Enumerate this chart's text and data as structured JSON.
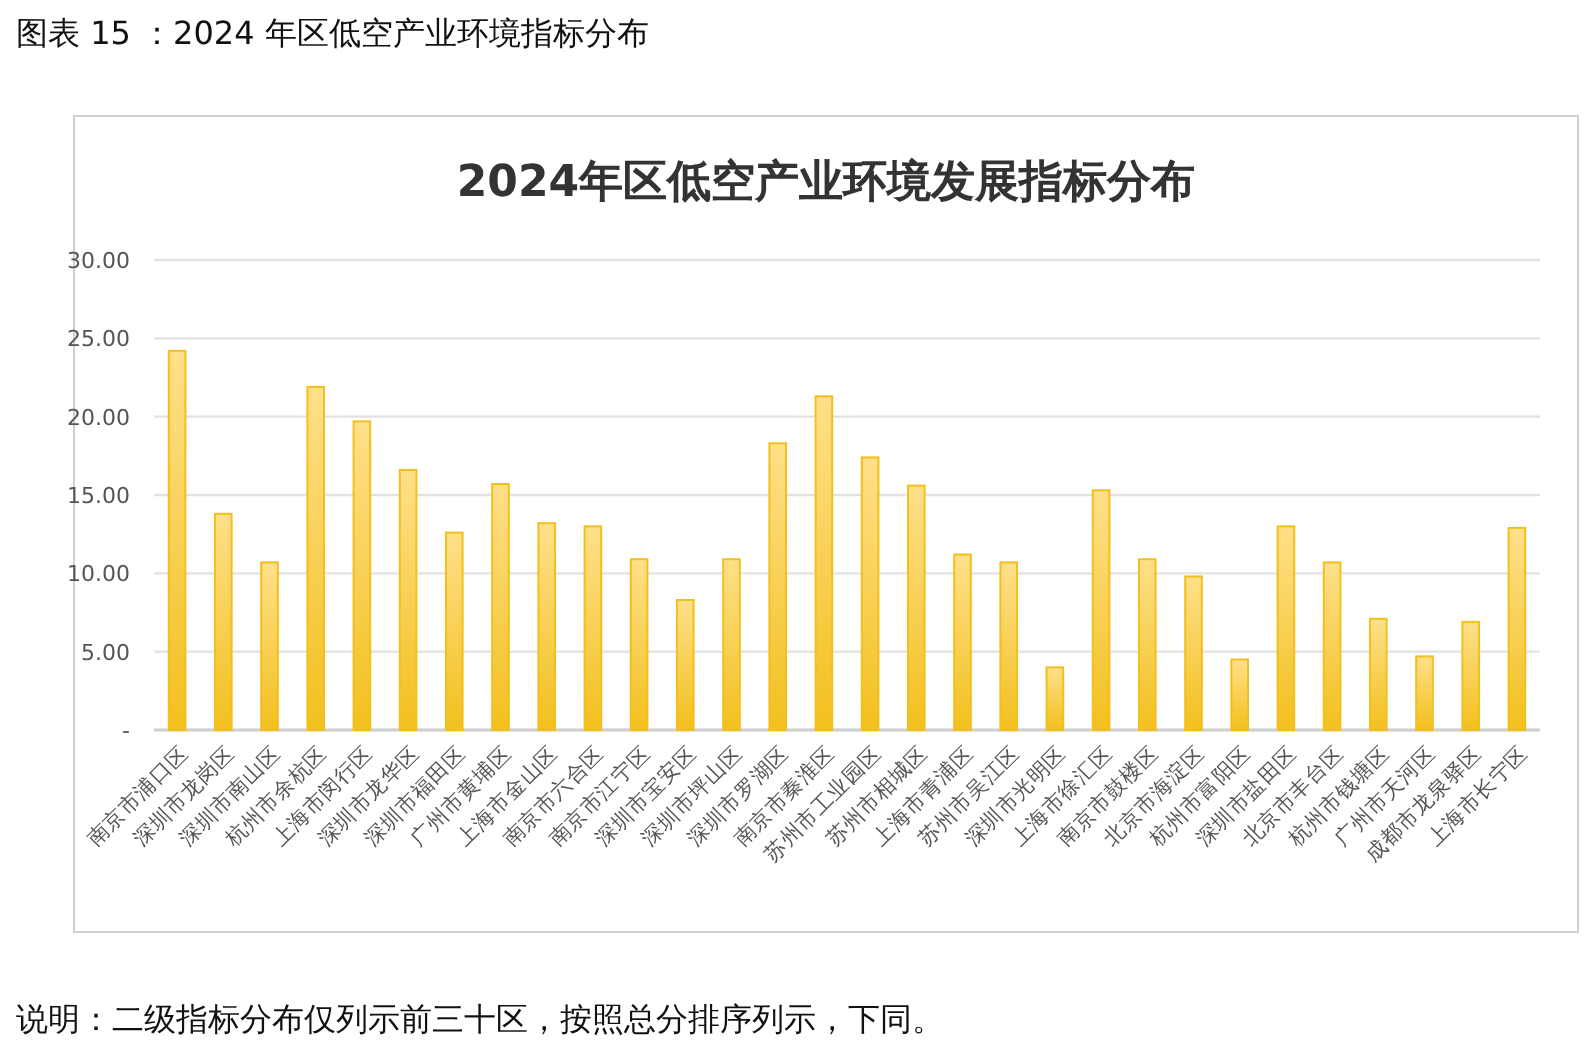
{
  "chart_data": {
    "type": "bar",
    "title": "2024年区低空产业环境发展指标分布",
    "annotations": [
      "图表 15 ：2024 年区低空产业环境指标分布",
      "说明：二级指标分布仅列示前三十区，按照总分排序列示，下同。"
    ],
    "categories": [
      "南京市浦口区",
      "深圳市龙岗区",
      "深圳市南山区",
      "杭州市余杭区",
      "上海市闵行区",
      "深圳市龙华区",
      "深圳市福田区",
      "广州市黄埔区",
      "上海市金山区",
      "南京市六合区",
      "南京市江宁区",
      "深圳市宝安区",
      "深圳市坪山区",
      "深圳市罗湖区",
      "南京市秦淮区",
      "苏州市工业园区",
      "苏州市相城区",
      "上海市青浦区",
      "苏州市吴江区",
      "深圳市光明区",
      "上海市徐汇区",
      "南京市鼓楼区",
      "北京市海淀区",
      "杭州市富阳区",
      "深圳市盐田区",
      "北京市丰台区",
      "杭州市钱塘区",
      "广州市天河区",
      "成都市龙泉驿区",
      "上海市长宁区"
    ],
    "values": [
      24.2,
      13.8,
      10.7,
      21.9,
      19.7,
      16.6,
      12.6,
      15.7,
      13.2,
      13.0,
      10.9,
      8.3,
      10.9,
      18.3,
      21.3,
      17.4,
      15.6,
      11.2,
      10.7,
      4.0,
      15.3,
      10.9,
      9.8,
      4.5,
      13.0,
      10.7,
      7.1,
      4.7,
      6.9,
      12.9
    ],
    "color": "#f2c01e",
    "ylim": [
      0,
      30
    ],
    "yticks": [
      {
        "value": 0,
        "label": "-"
      },
      {
        "value": 5,
        "label": "5.00"
      },
      {
        "value": 10,
        "label": "10.00"
      },
      {
        "value": 15,
        "label": "15.00"
      },
      {
        "value": 20,
        "label": "20.00"
      },
      {
        "value": 25,
        "label": "25.00"
      },
      {
        "value": 30,
        "label": "30.00"
      }
    ],
    "grid": "y"
  }
}
